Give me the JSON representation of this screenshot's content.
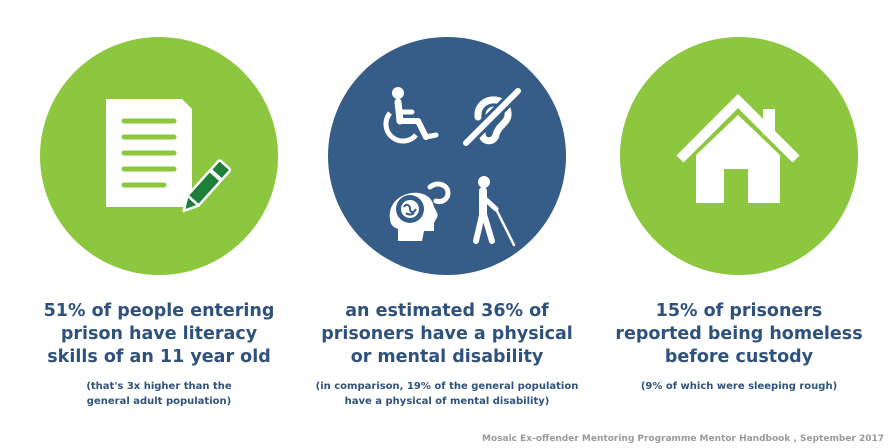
{
  "stats": [
    {
      "headline": "51% of people entering\nprison have literacy\nskills of an 11 year old",
      "note": "(that's 3x higher than  the\ngeneral adult population)",
      "icon": "document-pen-icon",
      "color": "#8dc63f"
    },
    {
      "headline": "an estimated 36% of\nprisoners have a physical\nor mental disability",
      "note": "(in comparison, 19% of the general population\nhave a physical of mental disability)",
      "icon": "disability-icons",
      "color": "#355d88"
    },
    {
      "headline": "15% of prisoners\nreported being homeless\nbefore custody",
      "note": "(9% of which were sleeping rough)",
      "icon": "house-icon",
      "color": "#8dc63f"
    }
  ],
  "source": "Mosaic Ex-offender Mentoring Programme Mentor Handbook , September 2017",
  "colors": {
    "green": "#8dc63f",
    "navy": "#355d88",
    "text": "#2f527d"
  }
}
